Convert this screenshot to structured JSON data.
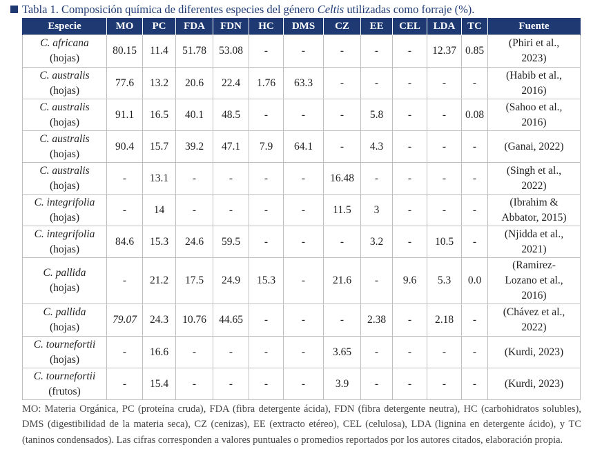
{
  "caption": {
    "prefix": "Tabla 1. Composición química de diferentes especies del género ",
    "genus": "Celtis",
    "suffix": " utilizadas como forraje (%)."
  },
  "headers": [
    "Especie",
    "MO",
    "PC",
    "FDA",
    "FDN",
    "HC",
    "DMS",
    "CZ",
    "EE",
    "CEL",
    "LDA",
    "TC",
    "Fuente"
  ],
  "rows": [
    {
      "species": "C. africana",
      "part": "(hojas)",
      "values": [
        "80.15",
        "11.4",
        "51.78",
        "53.08",
        "-",
        "-",
        "-",
        "-",
        "-",
        "12.37",
        "0.85"
      ],
      "source": [
        "(Phiri et al.,",
        "2023)"
      ]
    },
    {
      "species": "C. australis",
      "part": "(hojas)",
      "values": [
        "77.6",
        "13.2",
        "20.6",
        "22.4",
        "1.76",
        "63.3",
        "-",
        "-",
        "-",
        "-",
        "-"
      ],
      "source": [
        "(Habib et al.,",
        "2016)"
      ]
    },
    {
      "species": "C. australis",
      "part": "(hojas)",
      "values": [
        "91.1",
        "16.5",
        "40.1",
        "48.5",
        "-",
        "-",
        "-",
        "5.8",
        "-",
        "-",
        "0.08"
      ],
      "source": [
        "(Sahoo et al.,",
        "2016)"
      ]
    },
    {
      "species": "C. australis",
      "part": "(hojas)",
      "values": [
        "90.4",
        "15.7",
        "39.2",
        "47.1",
        "7.9",
        "64.1",
        "-",
        "4.3",
        "-",
        "-",
        "-"
      ],
      "source": [
        "(Ganai, 2022)"
      ]
    },
    {
      "species": "C. australis",
      "part": "(hojas)",
      "values": [
        "-",
        "13.1",
        "-",
        "-",
        "-",
        "-",
        "16.48",
        "-",
        "-",
        "-",
        "-"
      ],
      "source": [
        "(Singh et al.,",
        "2022)"
      ]
    },
    {
      "species": "C. integrifolia",
      "part": "(hojas)",
      "values": [
        "-",
        "14",
        "-",
        "-",
        "-",
        "-",
        "11.5",
        "3",
        "-",
        "-",
        "-"
      ],
      "source": [
        "(Ibrahim &",
        "Abbator, 2015)"
      ]
    },
    {
      "species": "C. integrifolia",
      "part": "(hojas)",
      "values": [
        "84.6",
        "15.3",
        "24.6",
        "59.5",
        "-",
        "-",
        "-",
        "3.2",
        "-",
        "10.5",
        "-"
      ],
      "source": [
        "(Njidda et al.,",
        "2021)"
      ]
    },
    {
      "species": "C. pallida",
      "part": "(hojas)",
      "values": [
        "-",
        "21.2",
        "17.5",
        "24.9",
        "15.3",
        "-",
        "21.6",
        "-",
        "9.6",
        "5.3",
        "0.0"
      ],
      "source": [
        "(Ramirez-",
        "Lozano et al.,",
        "2016)"
      ]
    },
    {
      "species": "C. pallida",
      "part": "(hojas)",
      "values": [
        "79.07",
        "24.3",
        "10.76",
        "44.65",
        "-",
        "-",
        "-",
        "2.38",
        "-",
        "2.18",
        "-"
      ],
      "source": [
        "(Chávez et al.,",
        "2022)"
      ],
      "mo_italic": true
    },
    {
      "species": "C. tournefortii",
      "part": "(hojas)",
      "values": [
        "-",
        "16.6",
        "-",
        "-",
        "-",
        "-",
        "3.65",
        "-",
        "-",
        "-",
        "-"
      ],
      "source": [
        "(Kurdi, 2023)"
      ]
    },
    {
      "species": "C. tournefortii",
      "part": "(frutos)",
      "values": [
        "-",
        "15.4",
        "-",
        "-",
        "-",
        "-",
        "3.9",
        "-",
        "-",
        "-",
        "-"
      ],
      "source": [
        "(Kurdi, 2023)"
      ]
    }
  ],
  "note": "MO: Materia Orgánica, PC (proteína cruda), FDA (fibra detergente ácida), FDN (fibra detergente neutra), HC (carbohidratos solubles), DMS (digestibilidad de la materia seca), CZ (cenizas), EE (extracto etéreo), CEL (celulosa), LDA (lignina en detergente ácido), y TC (taninos condensados). Las cifras corresponden a valores puntuales o promedios reportados por los autores citados, elaboración propia.",
  "colors": {
    "header_bg": "#1f3a73",
    "header_text": "#ffffff",
    "grid": "#bfbfbf"
  }
}
